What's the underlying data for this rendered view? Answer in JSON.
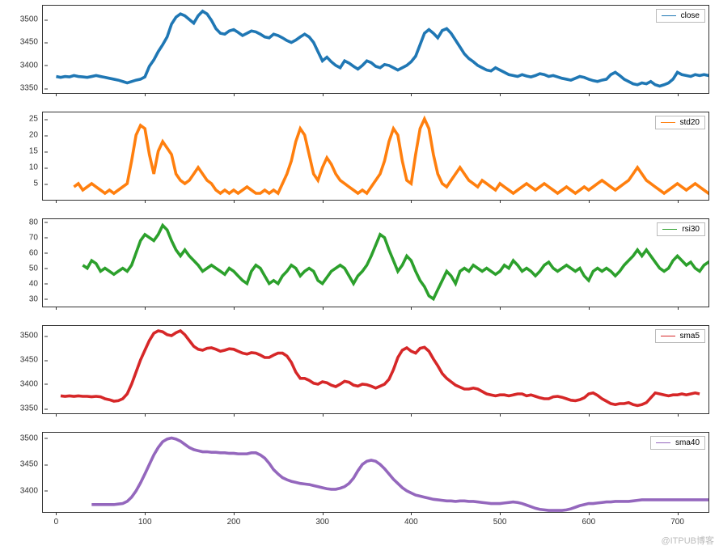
{
  "global": {
    "background_color": "#ffffff",
    "border_color": "#333333",
    "tick_fontsize": 10,
    "tick_color": "#333333",
    "legend_border": "#bbbbbb",
    "line_width": 1.2
  },
  "x_axis": {
    "min": -15,
    "max": 735,
    "ticks": [
      0,
      100,
      200,
      300,
      400,
      500,
      600,
      700
    ],
    "show_labels_on_last_only": true
  },
  "watermark": "@ITPUB博客",
  "panels": [
    {
      "id": "close",
      "type": "line",
      "legend_label": "close",
      "color": "#1f77b4",
      "ymin": 3340,
      "ymax": 3530,
      "yticks": [
        3350,
        3400,
        3450,
        3500
      ],
      "x_start": 0,
      "x_step": 5,
      "values": [
        3376,
        3374,
        3376,
        3375,
        3378,
        3376,
        3375,
        3374,
        3376,
        3378,
        3376,
        3374,
        3372,
        3370,
        3368,
        3365,
        3362,
        3365,
        3368,
        3370,
        3375,
        3398,
        3412,
        3430,
        3445,
        3462,
        3490,
        3505,
        3512,
        3508,
        3500,
        3492,
        3508,
        3518,
        3512,
        3498,
        3480,
        3470,
        3468,
        3475,
        3478,
        3472,
        3465,
        3470,
        3475,
        3473,
        3468,
        3462,
        3460,
        3468,
        3465,
        3460,
        3454,
        3450,
        3455,
        3462,
        3468,
        3462,
        3450,
        3430,
        3410,
        3418,
        3408,
        3400,
        3395,
        3410,
        3405,
        3398,
        3392,
        3400,
        3410,
        3406,
        3398,
        3395,
        3402,
        3400,
        3395,
        3390,
        3395,
        3400,
        3408,
        3420,
        3445,
        3470,
        3478,
        3470,
        3460,
        3476,
        3480,
        3470,
        3455,
        3440,
        3425,
        3415,
        3408,
        3400,
        3395,
        3390,
        3388,
        3395,
        3390,
        3385,
        3380,
        3378,
        3376,
        3380,
        3377,
        3375,
        3378,
        3382,
        3380,
        3376,
        3378,
        3375,
        3372,
        3370,
        3368,
        3372,
        3376,
        3374,
        3370,
        3367,
        3365,
        3368,
        3370,
        3380,
        3385,
        3378,
        3370,
        3365,
        3360,
        3358,
        3362,
        3360,
        3365,
        3358,
        3355,
        3358,
        3362,
        3370,
        3385,
        3380,
        3378,
        3376,
        3380,
        3378,
        3380,
        3378,
        3380,
        3382,
        3380
      ]
    },
    {
      "id": "std20",
      "type": "line",
      "legend_label": "std20",
      "color": "#ff7f0e",
      "ymin": 0,
      "ymax": 27,
      "yticks": [
        5,
        10,
        15,
        20,
        25
      ],
      "x_start": 20,
      "x_step": 5,
      "values": [
        4,
        5,
        3,
        4,
        5,
        4,
        3,
        2,
        3,
        2,
        3,
        4,
        5,
        12,
        20,
        23,
        22,
        14,
        8,
        15,
        18,
        16,
        14,
        8,
        6,
        5,
        6,
        8,
        10,
        8,
        6,
        5,
        3,
        2,
        3,
        2,
        3,
        2,
        3,
        4,
        3,
        2,
        2,
        3,
        2,
        3,
        2,
        5,
        8,
        12,
        18,
        22,
        20,
        14,
        8,
        6,
        10,
        13,
        11,
        8,
        6,
        5,
        4,
        3,
        2,
        3,
        2,
        4,
        6,
        8,
        12,
        18,
        22,
        20,
        12,
        6,
        5,
        14,
        22,
        25,
        22,
        14,
        8,
        5,
        4,
        6,
        8,
        10,
        8,
        6,
        5,
        4,
        6,
        5,
        4,
        3,
        5,
        4,
        3,
        2,
        3,
        4,
        5,
        4,
        3,
        4,
        5,
        4,
        3,
        2,
        3,
        4,
        3,
        2,
        3,
        4,
        3,
        4,
        5,
        6,
        5,
        4,
        3,
        4,
        5,
        6,
        8,
        10,
        8,
        6,
        5,
        4,
        3,
        2,
        3,
        4,
        5,
        4,
        3,
        4,
        5,
        4,
        3,
        2,
        3,
        2
      ]
    },
    {
      "id": "rsi30",
      "type": "line",
      "legend_label": "rsi30",
      "color": "#2ca02c",
      "ymin": 25,
      "ymax": 82,
      "yticks": [
        30,
        40,
        50,
        60,
        70,
        80
      ],
      "x_start": 30,
      "x_step": 5,
      "values": [
        52,
        50,
        55,
        53,
        48,
        50,
        48,
        46,
        48,
        50,
        48,
        52,
        60,
        68,
        72,
        70,
        68,
        72,
        78,
        75,
        68,
        62,
        58,
        62,
        58,
        55,
        52,
        48,
        50,
        52,
        50,
        48,
        46,
        50,
        48,
        45,
        42,
        40,
        48,
        52,
        50,
        45,
        40,
        42,
        40,
        45,
        48,
        52,
        50,
        45,
        48,
        50,
        48,
        42,
        40,
        44,
        48,
        50,
        52,
        50,
        45,
        40,
        45,
        48,
        52,
        58,
        65,
        72,
        70,
        62,
        55,
        48,
        52,
        58,
        55,
        48,
        42,
        38,
        32,
        30,
        36,
        42,
        48,
        45,
        40,
        48,
        50,
        48,
        52,
        50,
        48,
        50,
        48,
        46,
        48,
        52,
        50,
        55,
        52,
        48,
        50,
        48,
        45,
        48,
        52,
        54,
        50,
        48,
        50,
        52,
        50,
        48,
        50,
        45,
        42,
        48,
        50,
        48,
        50,
        48,
        45,
        48,
        52,
        55,
        58,
        62,
        58,
        62,
        58,
        54,
        50,
        48,
        50,
        55,
        58,
        55,
        52,
        54,
        50,
        48,
        52,
        54,
        52
      ]
    },
    {
      "id": "sma5",
      "type": "line",
      "legend_label": "sma5",
      "color": "#d62728",
      "ymin": 3340,
      "ymax": 3520,
      "yticks": [
        3350,
        3400,
        3450,
        3500
      ],
      "x_start": 5,
      "x_step": 5,
      "values": [
        3376,
        3375,
        3376,
        3375,
        3376,
        3375,
        3375,
        3374,
        3375,
        3374,
        3370,
        3368,
        3365,
        3366,
        3370,
        3380,
        3400,
        3425,
        3450,
        3470,
        3490,
        3505,
        3510,
        3508,
        3502,
        3500,
        3506,
        3510,
        3502,
        3490,
        3478,
        3472,
        3470,
        3474,
        3475,
        3472,
        3468,
        3470,
        3473,
        3472,
        3468,
        3464,
        3462,
        3465,
        3464,
        3460,
        3455,
        3455,
        3460,
        3464,
        3464,
        3458,
        3445,
        3425,
        3412,
        3412,
        3408,
        3402,
        3400,
        3405,
        3403,
        3398,
        3395,
        3400,
        3406,
        3404,
        3398,
        3396,
        3400,
        3399,
        3396,
        3392,
        3396,
        3400,
        3410,
        3430,
        3455,
        3470,
        3475,
        3468,
        3464,
        3474,
        3476,
        3468,
        3452,
        3438,
        3422,
        3412,
        3405,
        3398,
        3394,
        3390,
        3390,
        3392,
        3390,
        3385,
        3380,
        3378,
        3376,
        3378,
        3378,
        3376,
        3378,
        3380,
        3380,
        3376,
        3378,
        3375,
        3372,
        3370,
        3370,
        3374,
        3375,
        3373,
        3370,
        3367,
        3366,
        3368,
        3372,
        3380,
        3382,
        3377,
        3370,
        3365,
        3360,
        3358,
        3360,
        3360,
        3362,
        3358,
        3356,
        3358,
        3362,
        3372,
        3382,
        3380,
        3378,
        3376,
        3378,
        3378,
        3380,
        3378,
        3380,
        3382,
        3380
      ]
    },
    {
      "id": "sma40",
      "type": "line",
      "legend_label": "sma40",
      "color": "#9467bd",
      "ymin": 3360,
      "ymax": 3510,
      "yticks": [
        3400,
        3450,
        3500
      ],
      "x_start": 40,
      "x_step": 5,
      "values": [
        3374,
        3374,
        3374,
        3374,
        3374,
        3374,
        3375,
        3376,
        3380,
        3388,
        3400,
        3415,
        3432,
        3450,
        3468,
        3482,
        3493,
        3498,
        3500,
        3498,
        3494,
        3488,
        3482,
        3478,
        3476,
        3474,
        3474,
        3473,
        3473,
        3472,
        3472,
        3471,
        3471,
        3470,
        3470,
        3470,
        3472,
        3472,
        3468,
        3462,
        3452,
        3440,
        3432,
        3425,
        3421,
        3418,
        3416,
        3414,
        3413,
        3412,
        3410,
        3408,
        3406,
        3404,
        3403,
        3403,
        3405,
        3408,
        3414,
        3424,
        3438,
        3450,
        3456,
        3458,
        3456,
        3450,
        3442,
        3432,
        3422,
        3414,
        3406,
        3400,
        3396,
        3392,
        3390,
        3388,
        3386,
        3384,
        3383,
        3382,
        3381,
        3381,
        3380,
        3381,
        3381,
        3380,
        3380,
        3379,
        3378,
        3377,
        3376,
        3376,
        3376,
        3377,
        3378,
        3379,
        3378,
        3376,
        3373,
        3370,
        3367,
        3365,
        3364,
        3363,
        3363,
        3363,
        3363,
        3364,
        3366,
        3369,
        3372,
        3374,
        3376,
        3376,
        3377,
        3378,
        3379,
        3379,
        3380,
        3380,
        3380,
        3380,
        3381,
        3382,
        3383,
        3383,
        3383,
        3383,
        3383,
        3383,
        3383,
        3383,
        3383,
        3383,
        3383,
        3383,
        3383,
        3383,
        3383,
        3383
      ]
    }
  ]
}
